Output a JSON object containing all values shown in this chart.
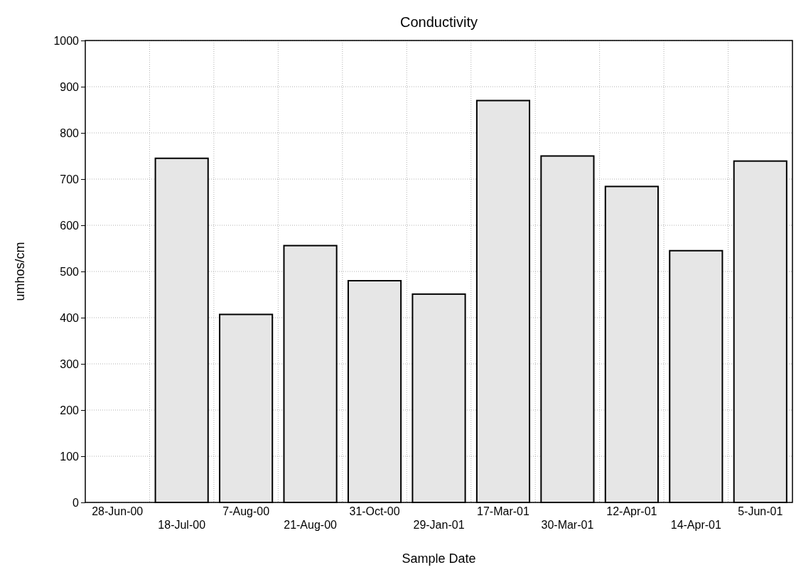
{
  "chart_data": {
    "type": "bar",
    "title": "Conductivity",
    "xlabel": "Sample Date",
    "ylabel": "umhos/cm",
    "categories": [
      "28-Jun-00",
      "18-Jul-00",
      "7-Aug-00",
      "21-Aug-00",
      "31-Oct-00",
      "29-Jan-01",
      "17-Mar-01",
      "30-Mar-01",
      "12-Apr-01",
      "14-Apr-01",
      "5-Jun-01"
    ],
    "values": [
      null,
      745,
      407,
      556,
      480,
      451,
      870,
      750,
      684,
      545,
      739
    ],
    "color": "#e6e6e6",
    "ylim": [
      0,
      1000
    ],
    "yticks": [
      0,
      100,
      200,
      300,
      400,
      500,
      600,
      700,
      800,
      900,
      1000
    ],
    "grid": true
  }
}
